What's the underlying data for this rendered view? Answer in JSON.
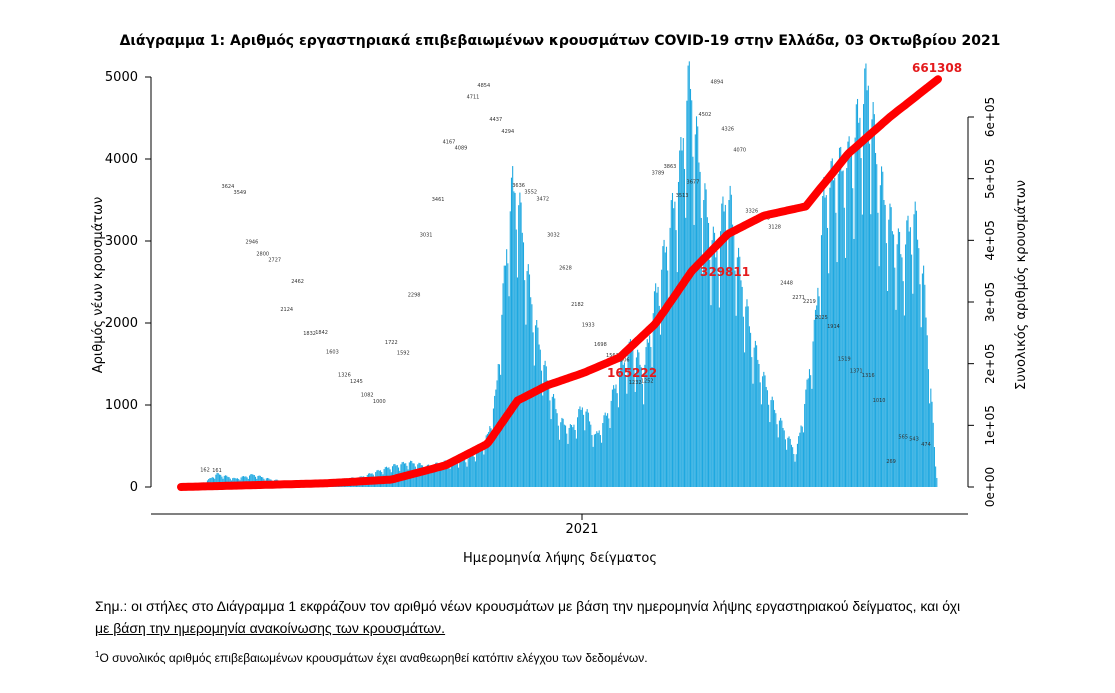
{
  "chart_data": {
    "type": "bar",
    "title": "Διάγραμμα 1: Αριθμός εργαστηριακά επιβεβαιωμένων κρουσμάτων COVID-19 στην Ελλάδα, 03 Οκτωβρίου 2021",
    "xlabel": "Ημερομηνία λήψης δείγματος",
    "ylabel": "Αριθμός νέων κρουσμάτων",
    "y2label": "Συνολικός αριθμός κρουσμάτων",
    "ylim": [
      0,
      5000
    ],
    "y2lim": [
      0,
      661308
    ],
    "yticks": [
      "0",
      "1000",
      "2000",
      "3000",
      "4000",
      "5000"
    ],
    "y2ticks": [
      "0e+00",
      "1e+05",
      "2e+05",
      "3e+05",
      "4e+05",
      "5e+05",
      "6e+05"
    ],
    "xtick": "2021",
    "bar_color": "#1ea8e0",
    "line_color": "#ff0000",
    "series": [
      {
        "name": "Αριθμός νέων κρουσμάτων",
        "type": "bar",
        "keypoints": [
          {
            "day": 0,
            "value": 0
          },
          {
            "day": 20,
            "value": 60
          },
          {
            "day": 30,
            "value": 160
          },
          {
            "day": 45,
            "value": 100
          },
          {
            "day": 60,
            "value": 150
          },
          {
            "day": 75,
            "value": 90
          },
          {
            "day": 95,
            "value": 60
          },
          {
            "day": 125,
            "value": 80
          },
          {
            "day": 150,
            "value": 120
          },
          {
            "day": 175,
            "value": 250
          },
          {
            "day": 190,
            "value": 300
          },
          {
            "day": 205,
            "value": 250
          },
          {
            "day": 220,
            "value": 300
          },
          {
            "day": 240,
            "value": 350
          },
          {
            "day": 255,
            "value": 600
          },
          {
            "day": 262,
            "value": 1100
          },
          {
            "day": 268,
            "value": 2300
          },
          {
            "day": 272,
            "value": 3100
          },
          {
            "day": 276,
            "value": 3624
          },
          {
            "day": 280,
            "value": 3549
          },
          {
            "day": 284,
            "value": 3100
          },
          {
            "day": 290,
            "value": 2400
          },
          {
            "day": 297,
            "value": 1800
          },
          {
            "day": 305,
            "value": 1300
          },
          {
            "day": 315,
            "value": 800
          },
          {
            "day": 325,
            "value": 700
          },
          {
            "day": 335,
            "value": 1000
          },
          {
            "day": 345,
            "value": 600
          },
          {
            "day": 355,
            "value": 900
          },
          {
            "day": 365,
            "value": 1400
          },
          {
            "day": 375,
            "value": 1700
          },
          {
            "day": 385,
            "value": 1400
          },
          {
            "day": 395,
            "value": 2300
          },
          {
            "day": 405,
            "value": 3000
          },
          {
            "day": 415,
            "value": 3800
          },
          {
            "day": 421,
            "value": 4711
          },
          {
            "day": 424,
            "value": 4854
          },
          {
            "day": 428,
            "value": 4300
          },
          {
            "day": 435,
            "value": 3500
          },
          {
            "day": 445,
            "value": 2800
          },
          {
            "day": 455,
            "value": 3600
          },
          {
            "day": 465,
            "value": 2600
          },
          {
            "day": 475,
            "value": 1800
          },
          {
            "day": 485,
            "value": 1300
          },
          {
            "day": 495,
            "value": 900
          },
          {
            "day": 505,
            "value": 600
          },
          {
            "day": 512,
            "value": 400
          },
          {
            "day": 520,
            "value": 1100
          },
          {
            "day": 528,
            "value": 2000
          },
          {
            "day": 535,
            "value": 3500
          },
          {
            "day": 545,
            "value": 3800
          },
          {
            "day": 555,
            "value": 3900
          },
          {
            "day": 565,
            "value": 4502
          },
          {
            "day": 572,
            "value": 4894
          },
          {
            "day": 580,
            "value": 3800
          },
          {
            "day": 590,
            "value": 3200
          },
          {
            "day": 600,
            "value": 2800
          },
          {
            "day": 610,
            "value": 3326
          },
          {
            "day": 618,
            "value": 2500
          },
          {
            "day": 624,
            "value": 1200
          },
          {
            "day": 628,
            "value": 250
          },
          {
            "day": 630,
            "value": 0
          }
        ]
      },
      {
        "name": "Συνολικός αριθμός κρουσμάτων",
        "type": "line",
        "keypoints": [
          {
            "day": 0,
            "value": 0
          },
          {
            "day": 60,
            "value": 3000
          },
          {
            "day": 120,
            "value": 6000
          },
          {
            "day": 175,
            "value": 12000
          },
          {
            "day": 220,
            "value": 35000
          },
          {
            "day": 255,
            "value": 70000
          },
          {
            "day": 280,
            "value": 140000
          },
          {
            "day": 305,
            "value": 165000
          },
          {
            "day": 335,
            "value": 185000
          },
          {
            "day": 365,
            "value": 210000
          },
          {
            "day": 395,
            "value": 265000
          },
          {
            "day": 425,
            "value": 350000
          },
          {
            "day": 455,
            "value": 410000
          },
          {
            "day": 485,
            "value": 440000
          },
          {
            "day": 520,
            "value": 455000
          },
          {
            "day": 555,
            "value": 540000
          },
          {
            "day": 590,
            "value": 600000
          },
          {
            "day": 630,
            "value": 661308
          }
        ]
      }
    ],
    "annotations": [
      "165222",
      "329811",
      "661308"
    ],
    "bar_labels": [
      "162",
      "161",
      "3624",
      "3549",
      "2946",
      "2800",
      "2727",
      "2124",
      "2462",
      "1832",
      "1842",
      "1603",
      "1326",
      "1245",
      "1082",
      "1000",
      "1722",
      "1592",
      "2298",
      "3031",
      "3461",
      "4167",
      "4089",
      "4711",
      "4854",
      "4437",
      "4294",
      "3636",
      "3552",
      "3472",
      "3032",
      "2628",
      "2182",
      "1933",
      "1698",
      "1562",
      "1506",
      "1232",
      "1252",
      "3789",
      "3863",
      "3513",
      "3677",
      "4502",
      "4894",
      "4326",
      "4070",
      "3326",
      "3239",
      "3128",
      "2448",
      "2271",
      "2219",
      "2025",
      "1914",
      "1519",
      "1371",
      "1316",
      "1010",
      "269",
      "565",
      "543",
      "474"
    ]
  },
  "note": {
    "line1": "Σημ.: οι στήλες στο Διάγραμμα 1 εκφράζουν τον αριθμό νέων κρουσμάτων με βάση την ημερομηνία λήψης εργαστηριακού δείγματος, και όχι",
    "line2": "με βάση την ημερομηνία ανακοίνωσης των κρουσμάτων."
  },
  "footnote": {
    "marker": "1",
    "text": "Ο συνολικός αριθμός επιβεβαιωμένων κρουσμάτων έχει αναθεωρηθεί κατόπιν ελέγχου των δεδομένων."
  }
}
